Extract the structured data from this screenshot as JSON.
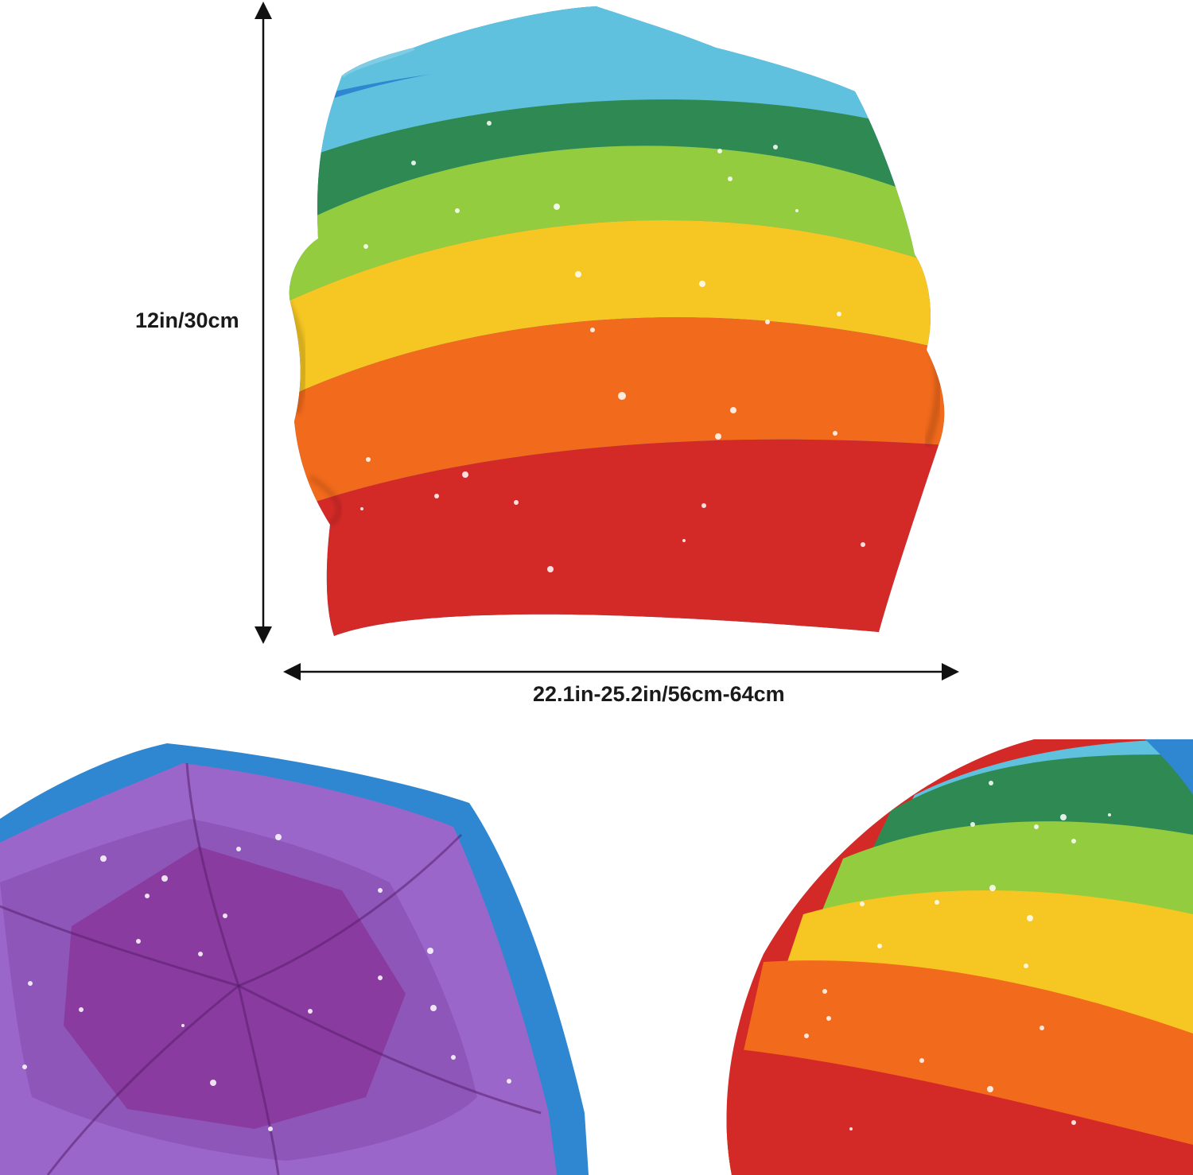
{
  "dimensions": {
    "height_label": "12in/30cm",
    "width_label": "22.1in-25.2in/56cm-64cm"
  },
  "stripe_colors": {
    "red": "#d42a27",
    "orange": "#f26a1b",
    "yellow": "#f6c722",
    "light_green": "#93cc3f",
    "dark_green": "#2e8a52",
    "light_blue": "#5fc1de",
    "blue": "#2f86d1",
    "violet": "#9a66c9",
    "purple": "#8a3ba0"
  },
  "views": [
    "front-view",
    "inside-top-view",
    "side-closeup-view"
  ]
}
